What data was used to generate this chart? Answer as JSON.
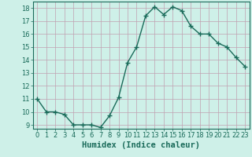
{
  "x": [
    0,
    1,
    2,
    3,
    4,
    5,
    6,
    7,
    8,
    9,
    10,
    11,
    12,
    13,
    14,
    15,
    16,
    17,
    18,
    19,
    20,
    21,
    22,
    23
  ],
  "y": [
    11,
    10,
    10,
    9.8,
    9,
    9,
    9,
    8.8,
    9.7,
    11.1,
    13.8,
    15.0,
    17.4,
    18.1,
    17.5,
    18.1,
    17.8,
    16.6,
    16.0,
    16.0,
    15.3,
    15.0,
    14.2,
    13.5
  ],
  "line_color": "#1a6b5a",
  "marker": "+",
  "marker_size": 4,
  "bg_color": "#cef0e8",
  "grid_color": "#c0a0b0",
  "xlabel": "Humidex (Indice chaleur)",
  "xlabel_fontsize": 7.5,
  "xlim": [
    -0.5,
    23.5
  ],
  "ylim_min": 8.7,
  "ylim_max": 18.5,
  "yticks": [
    9,
    10,
    11,
    12,
    13,
    14,
    15,
    16,
    17,
    18
  ],
  "xtick_labels": [
    "0",
    "1",
    "2",
    "3",
    "4",
    "5",
    "6",
    "7",
    "8",
    "9",
    "10",
    "11",
    "12",
    "13",
    "14",
    "15",
    "16",
    "17",
    "18",
    "19",
    "20",
    "21",
    "22",
    "23"
  ],
  "tick_fontsize": 6,
  "line_width": 1.0
}
